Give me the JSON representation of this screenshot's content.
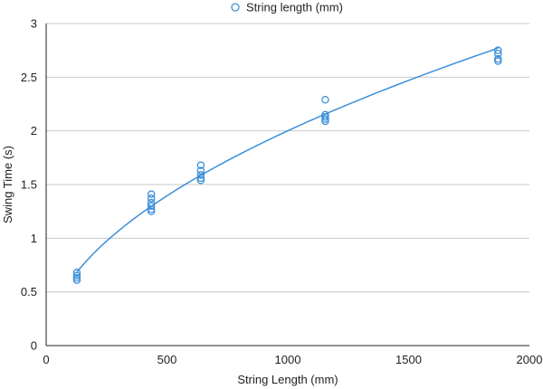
{
  "colors": {
    "series": "#3a8fd9",
    "grid": "#c8c8c8",
    "axis": "#222222",
    "background": "#ffffff"
  },
  "chart_data": {
    "type": "scatter",
    "title": "",
    "xlabel": "String Length (mm)",
    "ylabel": "Swing Time (s)",
    "xlim": [
      0,
      2000
    ],
    "ylim": [
      0,
      3
    ],
    "xticks": [
      0,
      500,
      1000,
      1500,
      2000
    ],
    "xtick_labels": [
      "0",
      "500",
      "1000",
      "1500",
      "2000"
    ],
    "yticks": [
      0,
      0.5,
      1,
      1.5,
      2,
      2.5,
      3
    ],
    "ytick_labels": [
      "0",
      "0.5",
      "1",
      "1.5",
      "2",
      "2.5",
      "3"
    ],
    "grid": "horizontal",
    "legend": {
      "position": "top-center",
      "entries": [
        "String length (mm)"
      ]
    },
    "series": [
      {
        "name": "String length (mm)",
        "marker": "open-circle",
        "points": [
          [
            127,
            0.61
          ],
          [
            127,
            0.63
          ],
          [
            127,
            0.65
          ],
          [
            127,
            0.68
          ],
          [
            435,
            1.25
          ],
          [
            435,
            1.27
          ],
          [
            435,
            1.3
          ],
          [
            435,
            1.33
          ],
          [
            435,
            1.37
          ],
          [
            435,
            1.41
          ],
          [
            640,
            1.54
          ],
          [
            640,
            1.56
          ],
          [
            640,
            1.59
          ],
          [
            640,
            1.63
          ],
          [
            640,
            1.68
          ],
          [
            1155,
            2.09
          ],
          [
            1155,
            2.11
          ],
          [
            1155,
            2.13
          ],
          [
            1155,
            2.15
          ],
          [
            1155,
            2.29
          ],
          [
            1870,
            2.65
          ],
          [
            1870,
            2.67
          ],
          [
            1870,
            2.72
          ],
          [
            1870,
            2.75
          ]
        ]
      }
    ],
    "trendline": {
      "type": "power",
      "coefficient": 0.0551,
      "exponent": 0.52,
      "x_range": [
        127,
        1870
      ]
    }
  }
}
